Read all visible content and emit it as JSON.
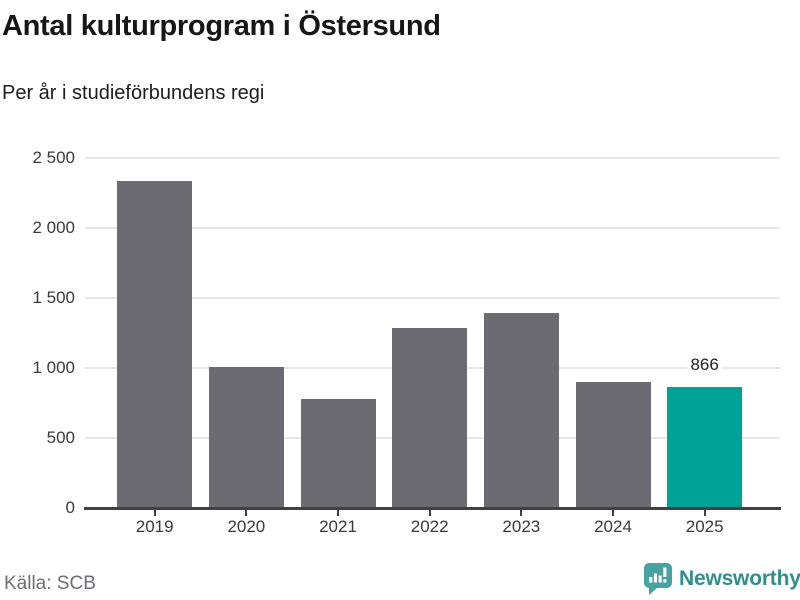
{
  "header": {
    "title": "Antal kulturprogram i Östersund",
    "subtitle": "Per år i studieförbundens regi"
  },
  "footer": {
    "source": "Källa: SCB",
    "brand_name": "Newsworthy",
    "brand_icon": "newsworthy-pin-bar-chart-icon"
  },
  "colors": {
    "bar_default": "#6b6b71",
    "bar_highlight": "#00a296",
    "gridline": "#e6e6e6",
    "axis": "#414144",
    "brand_text": "#2e8f8d",
    "brand_icon": "#46a3a0"
  },
  "chart_data": {
    "type": "bar",
    "title": "Antal kulturprogram i Östersund",
    "subtitle": "Per år i studieförbundens regi",
    "categories": [
      "2019",
      "2020",
      "2021",
      "2022",
      "2023",
      "2024",
      "2025"
    ],
    "values": [
      2335,
      1010,
      780,
      1285,
      1390,
      900,
      866
    ],
    "highlight_index": 6,
    "data_labels": [
      {
        "index": 6,
        "text": "866"
      }
    ],
    "xlabel": "",
    "ylabel": "",
    "ylim": [
      0,
      2500
    ],
    "yticks": [
      0,
      500,
      1000,
      1500,
      2000,
      2500
    ],
    "ytick_labels": [
      "0",
      "500",
      "1 000",
      "1 500",
      "2 000",
      "2 500"
    ],
    "grid": true,
    "legend": false,
    "source": "Källa: SCB"
  }
}
